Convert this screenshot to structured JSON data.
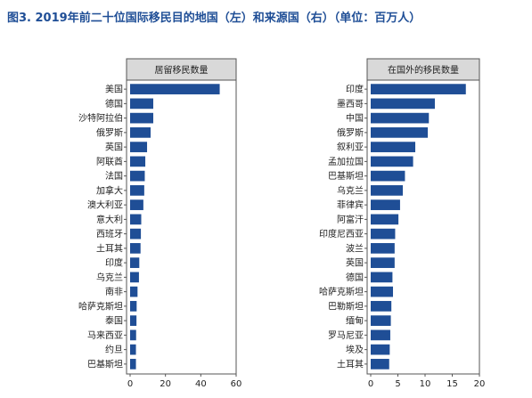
{
  "figure_title": "图3. 2019年前二十位国际移民目的地国（左）和来源国（右）（单位：百万人）",
  "colors": {
    "bar": "#1f4e96",
    "header_fill": "#d9d9d9",
    "frame": "#555555"
  },
  "chart_data": [
    {
      "type": "bar",
      "orientation": "horizontal",
      "title": "居留移民数量",
      "categories": [
        "美国",
        "德国",
        "沙特阿拉伯",
        "俄罗斯",
        "英国",
        "阿联酋",
        "法国",
        "加拿大",
        "澳大利亚",
        "意大利",
        "西班牙",
        "土耳其",
        "印度",
        "乌克兰",
        "南非",
        "哈萨克斯坦",
        "泰国",
        "马来西亚",
        "约旦",
        "巴基斯坦"
      ],
      "values": [
        50.7,
        13.1,
        13.1,
        11.6,
        9.6,
        8.6,
        8.3,
        8.0,
        7.5,
        6.3,
        6.1,
        5.9,
        5.2,
        5.0,
        4.2,
        3.7,
        3.6,
        3.4,
        3.3,
        3.3
      ],
      "xlim": [
        0,
        60
      ],
      "xticks": [
        0,
        20,
        40,
        60
      ],
      "grid": false
    },
    {
      "type": "bar",
      "orientation": "horizontal",
      "title": "在国外的移民数量",
      "categories": [
        "印度",
        "墨西哥",
        "中国",
        "俄罗斯",
        "叙利亚",
        "孟加拉国",
        "巴基斯坦",
        "乌克兰",
        "菲律宾",
        "阿富汗",
        "印度尼西亚",
        "波兰",
        "英国",
        "德国",
        "哈萨克斯坦",
        "巴勒斯坦",
        "缅甸",
        "罗马尼亚",
        "埃及",
        "土耳其"
      ],
      "values": [
        17.5,
        11.8,
        10.7,
        10.5,
        8.2,
        7.8,
        6.3,
        5.9,
        5.4,
        5.1,
        4.5,
        4.4,
        4.4,
        4.0,
        4.1,
        3.8,
        3.7,
        3.6,
        3.5,
        3.4
      ],
      "xlim": [
        0,
        20
      ],
      "xticks": [
        0,
        5,
        10,
        15,
        20
      ],
      "grid": false
    }
  ]
}
